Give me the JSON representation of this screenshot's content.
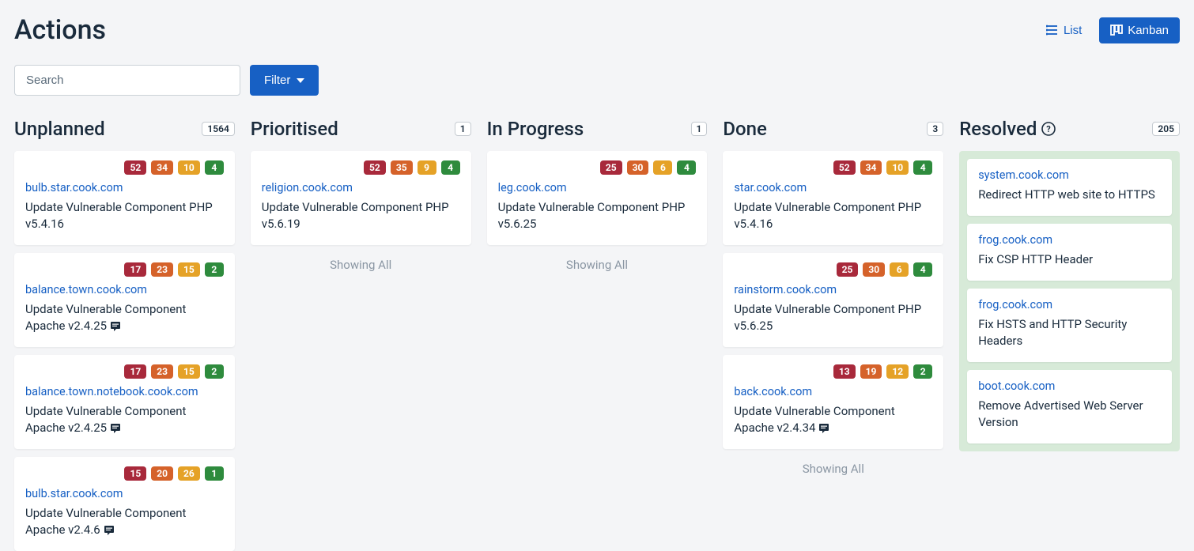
{
  "page": {
    "title": "Actions"
  },
  "view": {
    "list_label": "List",
    "kanban_label": "Kanban"
  },
  "search": {
    "placeholder": "Search"
  },
  "filter": {
    "label": "Filter"
  },
  "colors": {
    "primary": "#1760c4",
    "bg": "#f4f5f7",
    "critical": "#a8293b",
    "high": "#d5622a",
    "medium": "#e5a227",
    "low": "#2e8b3d",
    "resolved_bg": "#d7ead8"
  },
  "columns": {
    "unplanned": {
      "title": "Unplanned",
      "count": "1564",
      "showing_all": "",
      "cards": [
        {
          "sev": [
            "52",
            "34",
            "10",
            "4"
          ],
          "host": "bulb.star.cook.com",
          "desc": "Update Vulnerable Component PHP v5.4.16",
          "note": false
        },
        {
          "sev": [
            "17",
            "23",
            "15",
            "2"
          ],
          "host": "balance.town.cook.com",
          "desc": "Update Vulnerable Component Apache v2.4.25",
          "note": true
        },
        {
          "sev": [
            "17",
            "23",
            "15",
            "2"
          ],
          "host": "balance.town.notebook.cook.com",
          "desc": "Update Vulnerable Component Apache v2.4.25",
          "note": true
        },
        {
          "sev": [
            "15",
            "20",
            "26",
            "1"
          ],
          "host": "bulb.star.cook.com",
          "desc": "Update Vulnerable Component Apache v2.4.6",
          "note": true
        }
      ]
    },
    "prioritised": {
      "title": "Prioritised",
      "count": "1",
      "showing_all": "Showing All",
      "cards": [
        {
          "sev": [
            "52",
            "35",
            "9",
            "4"
          ],
          "host": "religion.cook.com",
          "desc": "Update Vulnerable Component PHP v5.6.19",
          "note": false
        }
      ]
    },
    "inprogress": {
      "title": "In Progress",
      "count": "1",
      "showing_all": "Showing All",
      "cards": [
        {
          "sev": [
            "25",
            "30",
            "6",
            "4"
          ],
          "host": "leg.cook.com",
          "desc": "Update Vulnerable Component PHP v5.6.25",
          "note": false
        }
      ]
    },
    "done": {
      "title": "Done",
      "count": "3",
      "showing_all": "Showing All",
      "cards": [
        {
          "sev": [
            "52",
            "34",
            "10",
            "4"
          ],
          "host": "star.cook.com",
          "desc": "Update Vulnerable Component PHP v5.4.16",
          "note": false
        },
        {
          "sev": [
            "25",
            "30",
            "6",
            "4"
          ],
          "host": "rainstorm.cook.com",
          "desc": "Update Vulnerable Component PHP v5.6.25",
          "note": false
        },
        {
          "sev": [
            "13",
            "19",
            "12",
            "2"
          ],
          "host": "back.cook.com",
          "desc": "Update Vulnerable Component Apache v2.4.34",
          "note": true
        }
      ]
    },
    "resolved": {
      "title": "Resolved",
      "count": "205",
      "cards": [
        {
          "host": "system.cook.com",
          "desc": "Redirect HTTP web site to HTTPS"
        },
        {
          "host": "frog.cook.com",
          "desc": "Fix CSP HTTP Header"
        },
        {
          "host": "frog.cook.com",
          "desc": "Fix HSTS and HTTP Security Headers"
        },
        {
          "host": "boot.cook.com",
          "desc": "Remove Advertised Web Server Version"
        }
      ]
    }
  }
}
